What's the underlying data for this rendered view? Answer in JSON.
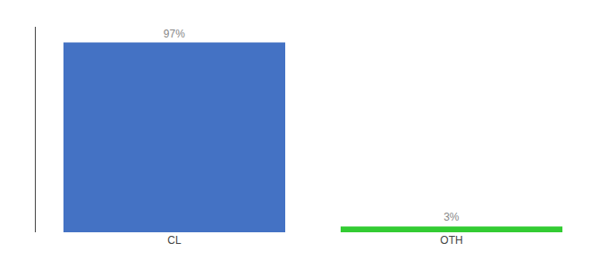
{
  "chart_data": {
    "type": "bar",
    "categories": [
      "CL",
      "OTH"
    ],
    "values": [
      97,
      3
    ],
    "colors": [
      "#4472c4",
      "#33cc33"
    ],
    "value_labels": [
      "97%",
      "3%"
    ],
    "data_labels": true,
    "ylim": [
      0,
      105
    ],
    "yticks": [],
    "tick_labels": "x",
    "grid": false
  }
}
